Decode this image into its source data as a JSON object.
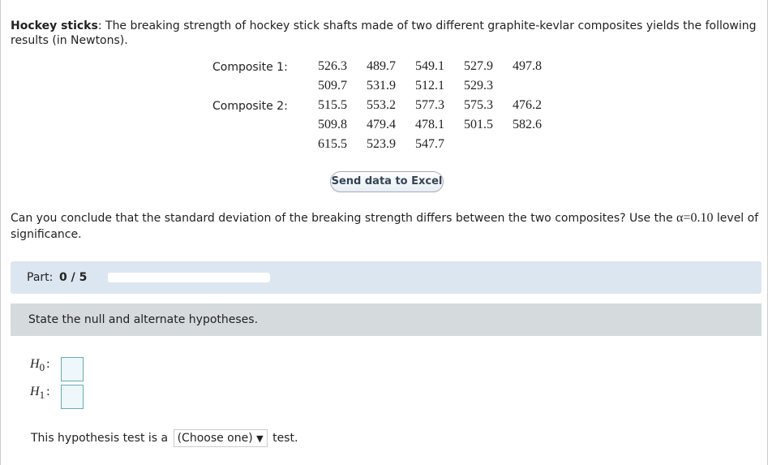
{
  "problem": {
    "title": "Hockey sticks",
    "text": ": The breaking strength of hockey stick shafts made of two different graphite-kevlar composites yields the following results (in Newtons)."
  },
  "composites": [
    {
      "label": "Composite 1:",
      "rows": [
        [
          526.3,
          489.7,
          549.1,
          527.9,
          497.8
        ],
        [
          509.7,
          531.9,
          512.1,
          529.3
        ]
      ]
    },
    {
      "label": "Composite 2:",
      "rows": [
        [
          515.5,
          553.2,
          577.3,
          575.3,
          476.2
        ],
        [
          509.8,
          479.4,
          478.1,
          501.5,
          582.6
        ],
        [
          615.5,
          523.9,
          547.7
        ]
      ]
    }
  ],
  "button": "Send data to Excel",
  "question": {
    "before": "Can you conclude that the standard deviation of the breaking strength differs between the two composites? Use the ",
    "alpha": "α=0.10",
    "after": " level of significance."
  },
  "part": {
    "label": "Part:",
    "progress": "0 / 5"
  },
  "step": {
    "prompt": "State the null and alternate hypotheses.",
    "hypotheses": [
      {
        "symbol": "H",
        "subscript": "0",
        "separator": ":"
      },
      {
        "symbol": "H",
        "subscript": "1",
        "separator": ":"
      }
    ],
    "test_line": {
      "before": "This hypothesis test is a",
      "select": "(Choose one)",
      "after": "test."
    }
  }
}
